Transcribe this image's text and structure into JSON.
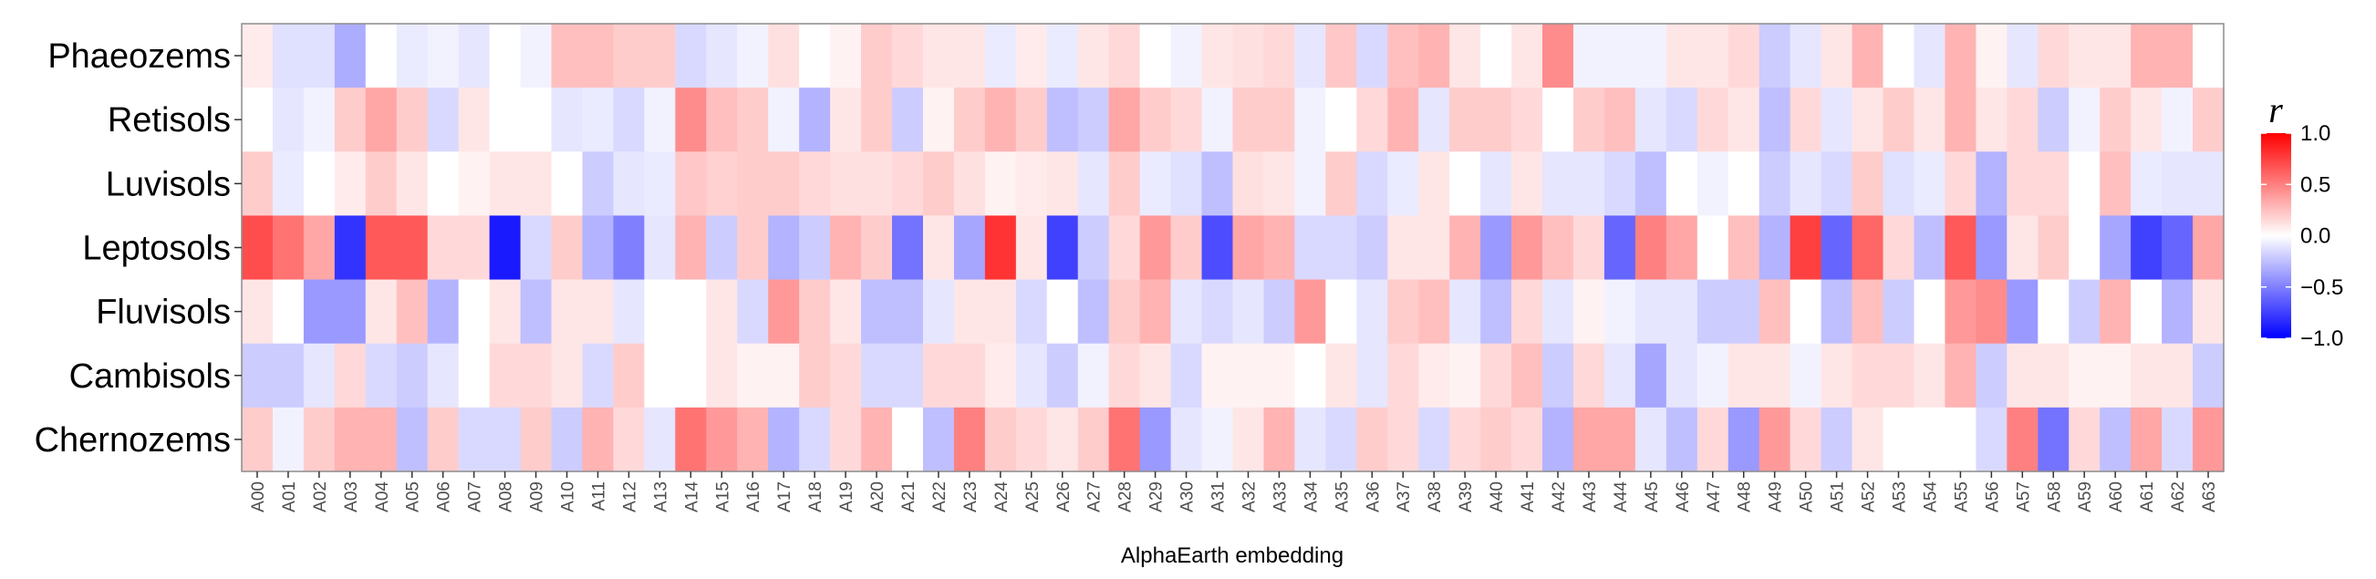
{
  "chart_data": {
    "type": "heatmap",
    "xlabel": "AlphaEarth embedding",
    "x": [
      "A00",
      "A01",
      "A02",
      "A03",
      "A04",
      "A05",
      "A06",
      "A07",
      "A08",
      "A09",
      "A10",
      "A11",
      "A12",
      "A13",
      "A14",
      "A15",
      "A16",
      "A17",
      "A18",
      "A19",
      "A20",
      "A21",
      "A22",
      "A23",
      "A24",
      "A25",
      "A26",
      "A27",
      "A28",
      "A29",
      "A30",
      "A31",
      "A32",
      "A33",
      "A34",
      "A35",
      "A36",
      "A37",
      "A38",
      "A39",
      "A40",
      "A41",
      "A42",
      "A43",
      "A44",
      "A45",
      "A46",
      "A47",
      "A48",
      "A49",
      "A50",
      "A51",
      "A52",
      "A53",
      "A54",
      "A55",
      "A56",
      "A57",
      "A58",
      "A59",
      "A60",
      "A61",
      "A62",
      "A63"
    ],
    "y": [
      "Phaeozems",
      "Retisols",
      "Luvisols",
      "Leptosols",
      "Fluvisols",
      "Cambisols",
      "Chernozems"
    ],
    "values": [
      [
        0.08,
        -0.12,
        -0.12,
        -0.32,
        0.0,
        -0.08,
        -0.05,
        -0.1,
        0.0,
        -0.05,
        0.25,
        0.25,
        0.2,
        0.2,
        -0.15,
        -0.1,
        -0.05,
        0.12,
        0.0,
        0.05,
        0.2,
        0.15,
        0.1,
        0.1,
        -0.08,
        0.08,
        -0.08,
        0.1,
        0.15,
        0.0,
        -0.05,
        0.1,
        0.12,
        0.15,
        -0.1,
        0.22,
        -0.15,
        0.25,
        0.3,
        0.1,
        0.0,
        0.1,
        0.45,
        -0.05,
        -0.05,
        -0.05,
        0.1,
        0.1,
        0.15,
        -0.2,
        -0.1,
        0.1,
        0.3,
        0.0,
        -0.1,
        0.3,
        0.05,
        -0.1,
        0.15,
        0.1,
        0.1,
        0.3,
        0.3,
        0.0
      ],
      [
        0.0,
        -0.1,
        -0.05,
        0.2,
        0.35,
        0.2,
        -0.15,
        0.1,
        0.0,
        0.0,
        -0.1,
        -0.08,
        -0.15,
        -0.05,
        0.45,
        0.25,
        0.2,
        -0.05,
        -0.3,
        0.1,
        0.2,
        -0.2,
        0.05,
        0.2,
        0.3,
        0.2,
        -0.25,
        -0.2,
        0.35,
        0.2,
        0.15,
        -0.05,
        0.2,
        0.2,
        -0.05,
        0.0,
        0.15,
        0.3,
        -0.1,
        0.2,
        0.2,
        0.15,
        0.0,
        0.2,
        0.25,
        -0.1,
        -0.15,
        0.15,
        0.1,
        -0.25,
        0.15,
        -0.1,
        0.1,
        0.2,
        0.1,
        0.3,
        0.1,
        0.15,
        -0.2,
        -0.05,
        0.2,
        0.1,
        -0.05,
        0.2
      ],
      [
        0.2,
        -0.08,
        0.0,
        0.08,
        0.2,
        0.1,
        0.0,
        0.05,
        0.1,
        0.1,
        0.0,
        -0.2,
        -0.1,
        -0.08,
        0.22,
        0.18,
        0.2,
        0.2,
        0.15,
        0.12,
        0.12,
        0.15,
        0.2,
        0.12,
        0.05,
        0.08,
        0.1,
        -0.1,
        0.2,
        -0.08,
        -0.12,
        -0.25,
        0.12,
        0.1,
        -0.05,
        0.2,
        -0.15,
        -0.08,
        0.1,
        0.0,
        -0.1,
        0.1,
        -0.1,
        -0.1,
        -0.15,
        -0.25,
        0.0,
        -0.05,
        0.0,
        -0.2,
        -0.1,
        -0.15,
        0.2,
        -0.12,
        -0.08,
        0.15,
        -0.3,
        0.15,
        0.15,
        0.0,
        0.25,
        -0.08,
        -0.1,
        -0.1
      ],
      [
        0.7,
        0.55,
        0.35,
        -0.8,
        0.65,
        0.65,
        0.15,
        0.15,
        -0.9,
        -0.15,
        0.2,
        -0.3,
        -0.5,
        -0.1,
        0.3,
        -0.2,
        0.2,
        -0.3,
        -0.2,
        0.3,
        0.2,
        -0.55,
        0.1,
        -0.35,
        0.8,
        0.1,
        -0.75,
        -0.2,
        0.15,
        0.4,
        0.2,
        -0.7,
        0.35,
        0.3,
        -0.15,
        -0.15,
        -0.2,
        0.1,
        0.1,
        0.3,
        -0.4,
        0.4,
        0.25,
        0.15,
        -0.6,
        0.5,
        0.35,
        0.0,
        0.25,
        -0.3,
        0.75,
        -0.6,
        0.6,
        0.15,
        -0.25,
        0.65,
        -0.4,
        0.1,
        0.2,
        0.0,
        -0.35,
        -0.75,
        -0.6,
        0.35
      ],
      [
        0.1,
        0.0,
        -0.4,
        -0.4,
        0.1,
        0.25,
        -0.3,
        0.0,
        0.1,
        -0.25,
        0.1,
        0.1,
        -0.1,
        0.0,
        0.0,
        0.1,
        -0.15,
        0.4,
        0.2,
        0.1,
        -0.25,
        -0.25,
        -0.1,
        0.1,
        0.1,
        -0.15,
        0.0,
        -0.25,
        0.2,
        0.3,
        -0.1,
        -0.15,
        -0.1,
        -0.2,
        0.4,
        0.0,
        -0.1,
        0.2,
        0.25,
        -0.1,
        -0.25,
        0.15,
        -0.1,
        0.05,
        -0.05,
        -0.1,
        -0.1,
        -0.2,
        -0.2,
        0.25,
        0.0,
        -0.25,
        0.25,
        -0.2,
        0.0,
        0.4,
        0.45,
        -0.4,
        0.0,
        -0.2,
        0.3,
        0.0,
        -0.3,
        0.1
      ],
      [
        -0.2,
        -0.2,
        -0.1,
        0.15,
        -0.15,
        -0.2,
        -0.1,
        0.0,
        0.15,
        0.15,
        0.1,
        -0.15,
        0.2,
        0.0,
        0.0,
        0.1,
        0.05,
        0.05,
        0.2,
        0.15,
        -0.15,
        -0.15,
        0.15,
        0.15,
        0.08,
        -0.1,
        -0.2,
        -0.05,
        0.15,
        0.1,
        -0.15,
        0.05,
        0.05,
        0.05,
        0.0,
        0.1,
        -0.1,
        0.15,
        0.08,
        0.05,
        0.15,
        0.25,
        -0.2,
        0.15,
        -0.1,
        -0.35,
        -0.1,
        -0.05,
        0.1,
        0.1,
        -0.05,
        0.1,
        0.15,
        0.15,
        0.1,
        0.3,
        -0.2,
        0.1,
        0.1,
        0.05,
        0.05,
        0.1,
        0.1,
        -0.2
      ],
      [
        0.2,
        -0.05,
        0.2,
        0.3,
        0.3,
        -0.25,
        0.2,
        -0.15,
        -0.15,
        0.2,
        -0.2,
        0.3,
        0.15,
        -0.1,
        0.55,
        0.4,
        0.3,
        -0.3,
        -0.15,
        0.15,
        0.3,
        0.0,
        -0.25,
        0.5,
        0.2,
        0.15,
        0.1,
        0.2,
        0.55,
        -0.4,
        -0.1,
        -0.05,
        0.1,
        0.3,
        -0.1,
        -0.15,
        0.2,
        0.15,
        -0.15,
        0.15,
        0.2,
        0.15,
        -0.3,
        0.35,
        0.35,
        -0.1,
        -0.25,
        0.15,
        -0.4,
        0.4,
        0.15,
        -0.2,
        0.1,
        0.0,
        0.0,
        0.0,
        -0.15,
        0.5,
        -0.55,
        0.15,
        -0.25,
        0.35,
        -0.15,
        0.4
      ]
    ],
    "colorbar": {
      "title": "r",
      "ticks": [
        "1.0",
        "0.5",
        "0.0",
        "−0.5",
        "−1.0"
      ],
      "tick_values": [
        1.0,
        0.5,
        0.0,
        -0.5,
        -1.0
      ],
      "range": [
        -1.0,
        1.0
      ],
      "low_color": "#0000FF",
      "mid_color": "#FFFFFF",
      "high_color": "#FF0000"
    },
    "grid": false,
    "legend_position": "right"
  }
}
